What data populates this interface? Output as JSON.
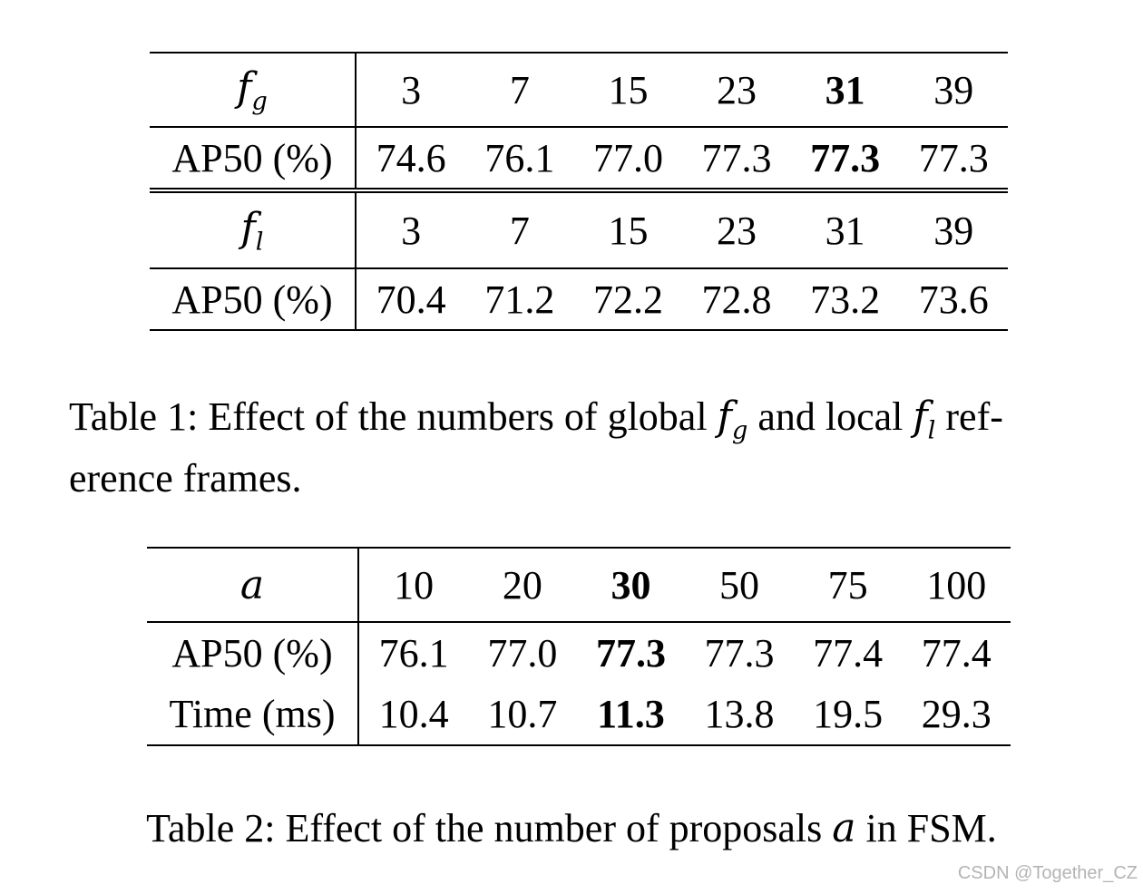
{
  "table1": {
    "global_header": {
      "var": "f",
      "sub": "g",
      "values": [
        "3",
        "7",
        "15",
        "23",
        "31",
        "39"
      ],
      "bold_index": 4
    },
    "global_ap50": {
      "label": "AP50 (%)",
      "values": [
        "74.6",
        "76.1",
        "77.0",
        "77.3",
        "77.3",
        "77.3"
      ],
      "bold_index": 4
    },
    "local_header": {
      "var": "f",
      "sub": "l",
      "values": [
        "3",
        "7",
        "15",
        "23",
        "31",
        "39"
      ]
    },
    "local_ap50": {
      "label": "AP50 (%)",
      "values": [
        "70.4",
        "71.2",
        "72.2",
        "72.8",
        "73.2",
        "73.6"
      ]
    }
  },
  "caption1": {
    "part1": "Table 1: Effect of the numbers of global ",
    "part2": " and local ",
    "part3": " ref-",
    "part4": "erence frames."
  },
  "table2": {
    "header": {
      "var": "a",
      "values": [
        "10",
        "20",
        "30",
        "50",
        "75",
        "100"
      ],
      "bold_index": 2
    },
    "ap50": {
      "label": "AP50 (%)",
      "values": [
        "76.1",
        "77.0",
        "77.3",
        "77.3",
        "77.4",
        "77.4"
      ],
      "bold_index": 2
    },
    "time": {
      "label": "Time (ms)",
      "values": [
        "10.4",
        "10.7",
        "11.3",
        "13.8",
        "19.5",
        "29.3"
      ],
      "bold_index": 2
    }
  },
  "caption2": {
    "part1": "Table 2: Effect of the number of proposals ",
    "var": "a",
    "part2": " in FSM."
  },
  "watermark": "CSDN @Together_CZ"
}
